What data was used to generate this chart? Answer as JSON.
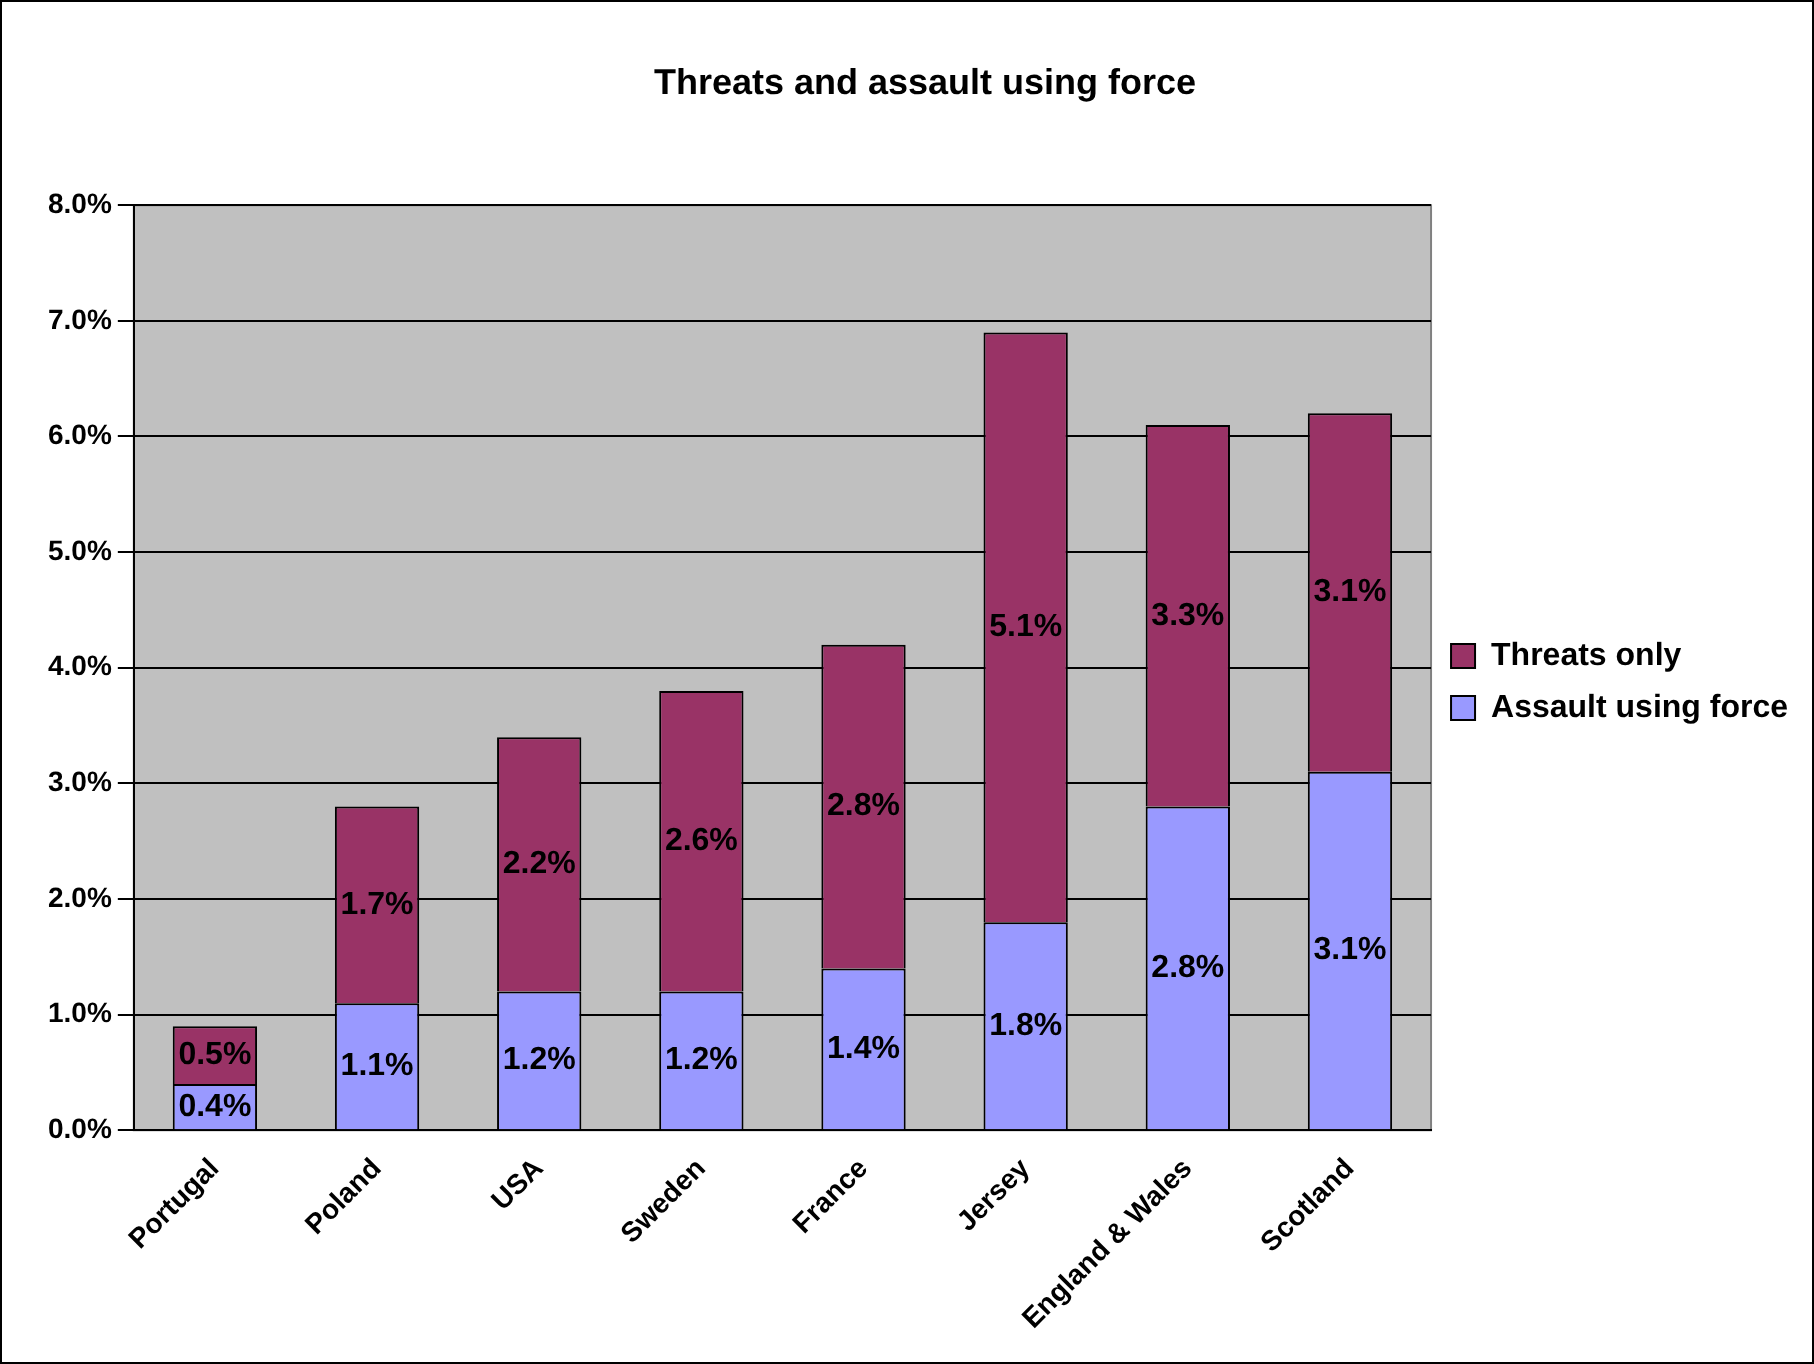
{
  "chart_data": {
    "type": "bar",
    "title": "Threats and assault using force",
    "categories": [
      "Portugal",
      "Poland",
      "USA",
      "Sweden",
      "France",
      "Jersey",
      "England & Wales",
      "Scotland"
    ],
    "stacked": true,
    "legend": "right",
    "grid": "y",
    "ylim": [
      0,
      8
    ],
    "yticks": [
      {
        "value": 0,
        "label": "0.0%"
      },
      {
        "value": 1,
        "label": "1.0%"
      },
      {
        "value": 2,
        "label": "2.0%"
      },
      {
        "value": 3,
        "label": "3.0%"
      },
      {
        "value": 4,
        "label": "4.0%"
      },
      {
        "value": 5,
        "label": "5.0%"
      },
      {
        "value": 6,
        "label": "6.0%"
      },
      {
        "value": 7,
        "label": "7.0%"
      },
      {
        "value": 8,
        "label": "8.0%"
      }
    ],
    "series": [
      {
        "name": "Assault using force",
        "color": "#9999ff",
        "values": [
          0.4,
          1.1,
          1.2,
          1.2,
          1.4,
          1.8,
          2.8,
          3.1
        ],
        "value_labels": [
          "0.4%",
          "1.1%",
          "1.2%",
          "1.2%",
          "1.4%",
          "1.8%",
          "2.8%",
          "3.1%"
        ]
      },
      {
        "name": "Threats only",
        "color": "#993366",
        "values": [
          0.5,
          1.7,
          2.2,
          2.6,
          2.8,
          5.1,
          3.3,
          3.1
        ],
        "value_labels": [
          "0.5%",
          "1.7%",
          "2.2%",
          "2.6%",
          "2.8%",
          "5.1%",
          "3.3%",
          "3.1%"
        ]
      }
    ]
  }
}
